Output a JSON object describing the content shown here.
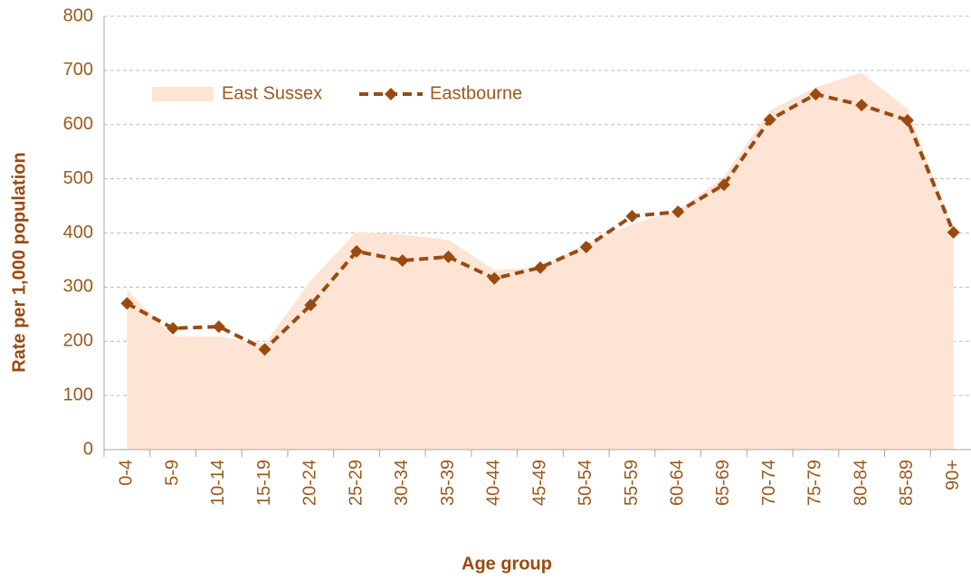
{
  "chart_data": {
    "type": "line",
    "x_label": "Age group",
    "y_label": "Rate per 1,000 population",
    "categories": [
      "0-4",
      "5-9",
      "10-14",
      "15-19",
      "20-24",
      "25-29",
      "30-34",
      "35-39",
      "40-44",
      "45-49",
      "50-54",
      "55-59",
      "60-64",
      "65-69",
      "70-74",
      "75-79",
      "80-84",
      "85-89",
      "90+"
    ],
    "series": [
      {
        "name": "East Sussex",
        "kind": "area",
        "color": "#fde4d4",
        "values": [
          295,
          209,
          209,
          195,
          312,
          402,
          397,
          387,
          332,
          337,
          379,
          416,
          442,
          504,
          626,
          669,
          696,
          629,
          404
        ]
      },
      {
        "name": "Eastbourne",
        "kind": "dashed-line",
        "color": "#9a4a10",
        "values": [
          270,
          224,
          227,
          185,
          267,
          366,
          349,
          356,
          316,
          336,
          374,
          431,
          439,
          489,
          609,
          656,
          636,
          608,
          401
        ]
      }
    ],
    "ylim": [
      0,
      800
    ],
    "yticks": [
      0,
      100,
      200,
      300,
      400,
      500,
      600,
      700,
      800
    ],
    "grid": true,
    "legend": "top-left"
  }
}
